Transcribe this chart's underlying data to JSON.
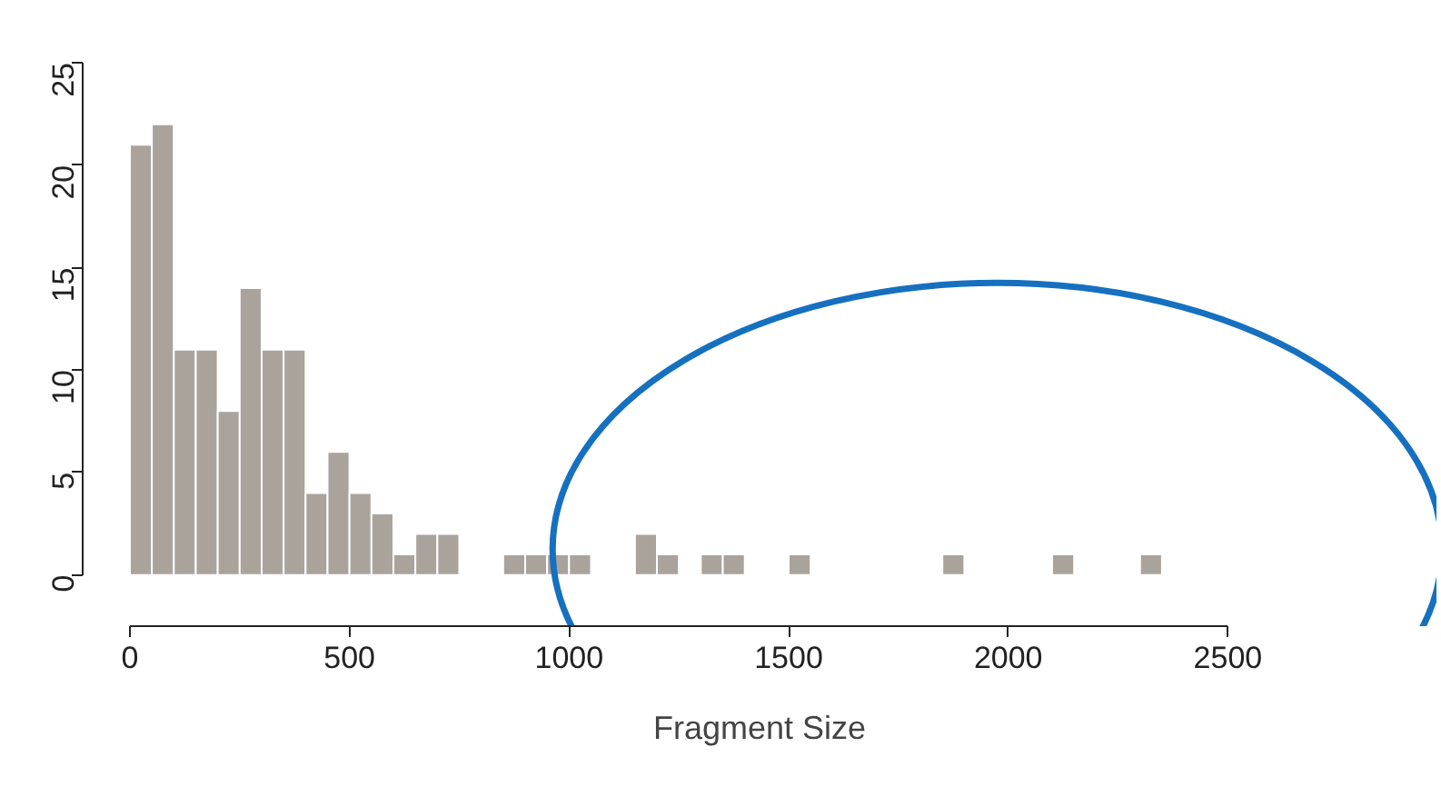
{
  "chart_data": {
    "type": "histogram",
    "xlabel": "Fragment Size",
    "bins": [
      0,
      50,
      100,
      150,
      200,
      250,
      300,
      350,
      400,
      450,
      500,
      550,
      600,
      650,
      700,
      750,
      800,
      850,
      900,
      950,
      1000,
      1050,
      1100,
      1150,
      1200,
      1250,
      1300,
      1350,
      1400,
      1450,
      1500,
      1550,
      1600,
      1650,
      1700,
      1750,
      1800,
      1850,
      1900,
      1950,
      2000,
      2050,
      2100,
      2150,
      2200,
      2250,
      2300,
      2350
    ],
    "values": [
      21,
      22,
      11,
      11,
      8,
      14,
      11,
      11,
      4,
      6,
      4,
      3,
      1,
      2,
      2,
      0,
      0,
      1,
      1,
      1,
      1,
      0,
      0,
      2,
      1,
      0,
      1,
      1,
      0,
      0,
      1,
      0,
      0,
      0,
      0,
      0,
      0,
      1,
      0,
      0,
      0,
      0,
      1,
      0,
      0,
      0,
      1
    ],
    "color": "#aaa39c",
    "xlim": [
      0,
      2500
    ],
    "xticks": [
      0,
      500,
      1000,
      1500,
      2000,
      2500
    ],
    "ylim": [
      0,
      25
    ],
    "yticks": [
      0,
      5,
      10,
      15,
      20,
      25
    ],
    "grid": false
  }
}
